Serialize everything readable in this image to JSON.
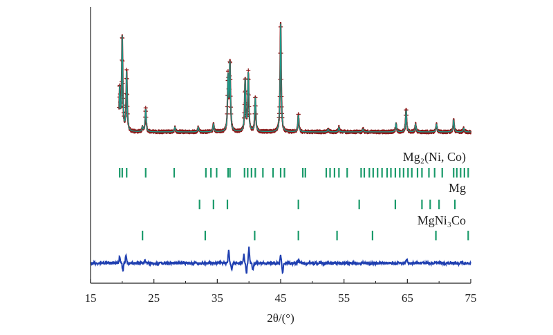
{
  "chart_data": {
    "type": "line",
    "title": "",
    "xlabel": "2θ/(°)",
    "ylabel": "",
    "xlim": [
      15,
      75
    ],
    "xticks": [
      15,
      25,
      35,
      45,
      55,
      65,
      75
    ],
    "legend_placement": "none",
    "grid": false,
    "series": [
      {
        "role": "observed",
        "marker": "+",
        "color": "#8b1a1a",
        "baseline": 0.0,
        "peaks": [
          {
            "x": 19.6,
            "y": 0.44
          },
          {
            "x": 20.0,
            "y": 1.0
          },
          {
            "x": 20.7,
            "y": 0.63
          },
          {
            "x": 23.2,
            "y": 0.05
          },
          {
            "x": 23.7,
            "y": 0.24
          },
          {
            "x": 28.3,
            "y": 0.05
          },
          {
            "x": 32.0,
            "y": 0.05
          },
          {
            "x": 34.4,
            "y": 0.08
          },
          {
            "x": 36.7,
            "y": 0.57
          },
          {
            "x": 37.0,
            "y": 0.71
          },
          {
            "x": 39.4,
            "y": 0.55
          },
          {
            "x": 39.9,
            "y": 0.62
          },
          {
            "x": 41.0,
            "y": 0.36
          },
          {
            "x": 45.0,
            "y": 1.16
          },
          {
            "x": 47.8,
            "y": 0.18
          },
          {
            "x": 52.5,
            "y": 0.03
          },
          {
            "x": 54.2,
            "y": 0.05
          },
          {
            "x": 58.0,
            "y": 0.03
          },
          {
            "x": 63.2,
            "y": 0.09
          },
          {
            "x": 64.8,
            "y": 0.23
          },
          {
            "x": 66.3,
            "y": 0.08
          },
          {
            "x": 69.6,
            "y": 0.08
          },
          {
            "x": 72.3,
            "y": 0.13
          },
          {
            "x": 73.9,
            "y": 0.04
          }
        ]
      },
      {
        "role": "calculated",
        "color": "#1a9a8a"
      },
      {
        "role": "difference",
        "color": "#1f3fb0",
        "features": [
          {
            "x": 19.6,
            "y": 0.1
          },
          {
            "x": 20.1,
            "y": -0.12
          },
          {
            "x": 20.6,
            "y": 0.14
          },
          {
            "x": 23.6,
            "y": 0.05
          },
          {
            "x": 36.8,
            "y": 0.22
          },
          {
            "x": 37.3,
            "y": -0.1
          },
          {
            "x": 39.2,
            "y": 0.14
          },
          {
            "x": 39.6,
            "y": -0.16
          },
          {
            "x": 40.0,
            "y": 0.25
          },
          {
            "x": 40.6,
            "y": -0.12
          },
          {
            "x": 45.0,
            "y": 0.12
          },
          {
            "x": 45.3,
            "y": -0.15
          },
          {
            "x": 47.8,
            "y": 0.05
          },
          {
            "x": 64.9,
            "y": 0.06
          }
        ]
      }
    ],
    "phases": [
      {
        "label": "Mg₂(Ni, Co)",
        "color": "#1a9a6a",
        "reflections": [
          19.6,
          20.0,
          20.7,
          23.7,
          28.2,
          33.2,
          34.0,
          34.9,
          36.7,
          37.0,
          39.3,
          39.8,
          40.4,
          41.0,
          42.2,
          43.8,
          45.0,
          45.6,
          48.5,
          48.9,
          52.2,
          52.8,
          53.5,
          54.2,
          55.5,
          57.7,
          58.2,
          59.0,
          59.6,
          60.3,
          61.0,
          61.8,
          62.4,
          63.1,
          63.8,
          64.4,
          65.1,
          65.7,
          66.6,
          67.3,
          68.4,
          69.3,
          70.5,
          72.3,
          72.8,
          73.4,
          74.0,
          74.6
        ]
      },
      {
        "label": "Mg",
        "color": "#1a9a6a",
        "reflections": [
          32.2,
          34.4,
          36.6,
          47.8,
          57.4,
          63.1,
          67.3,
          68.6,
          70.0,
          72.5
        ]
      },
      {
        "label": "MgNi₃Co",
        "color": "#1a9a6a",
        "reflections": [
          23.2,
          33.1,
          40.9,
          47.8,
          53.9,
          59.5,
          69.5,
          74.6
        ]
      }
    ]
  }
}
